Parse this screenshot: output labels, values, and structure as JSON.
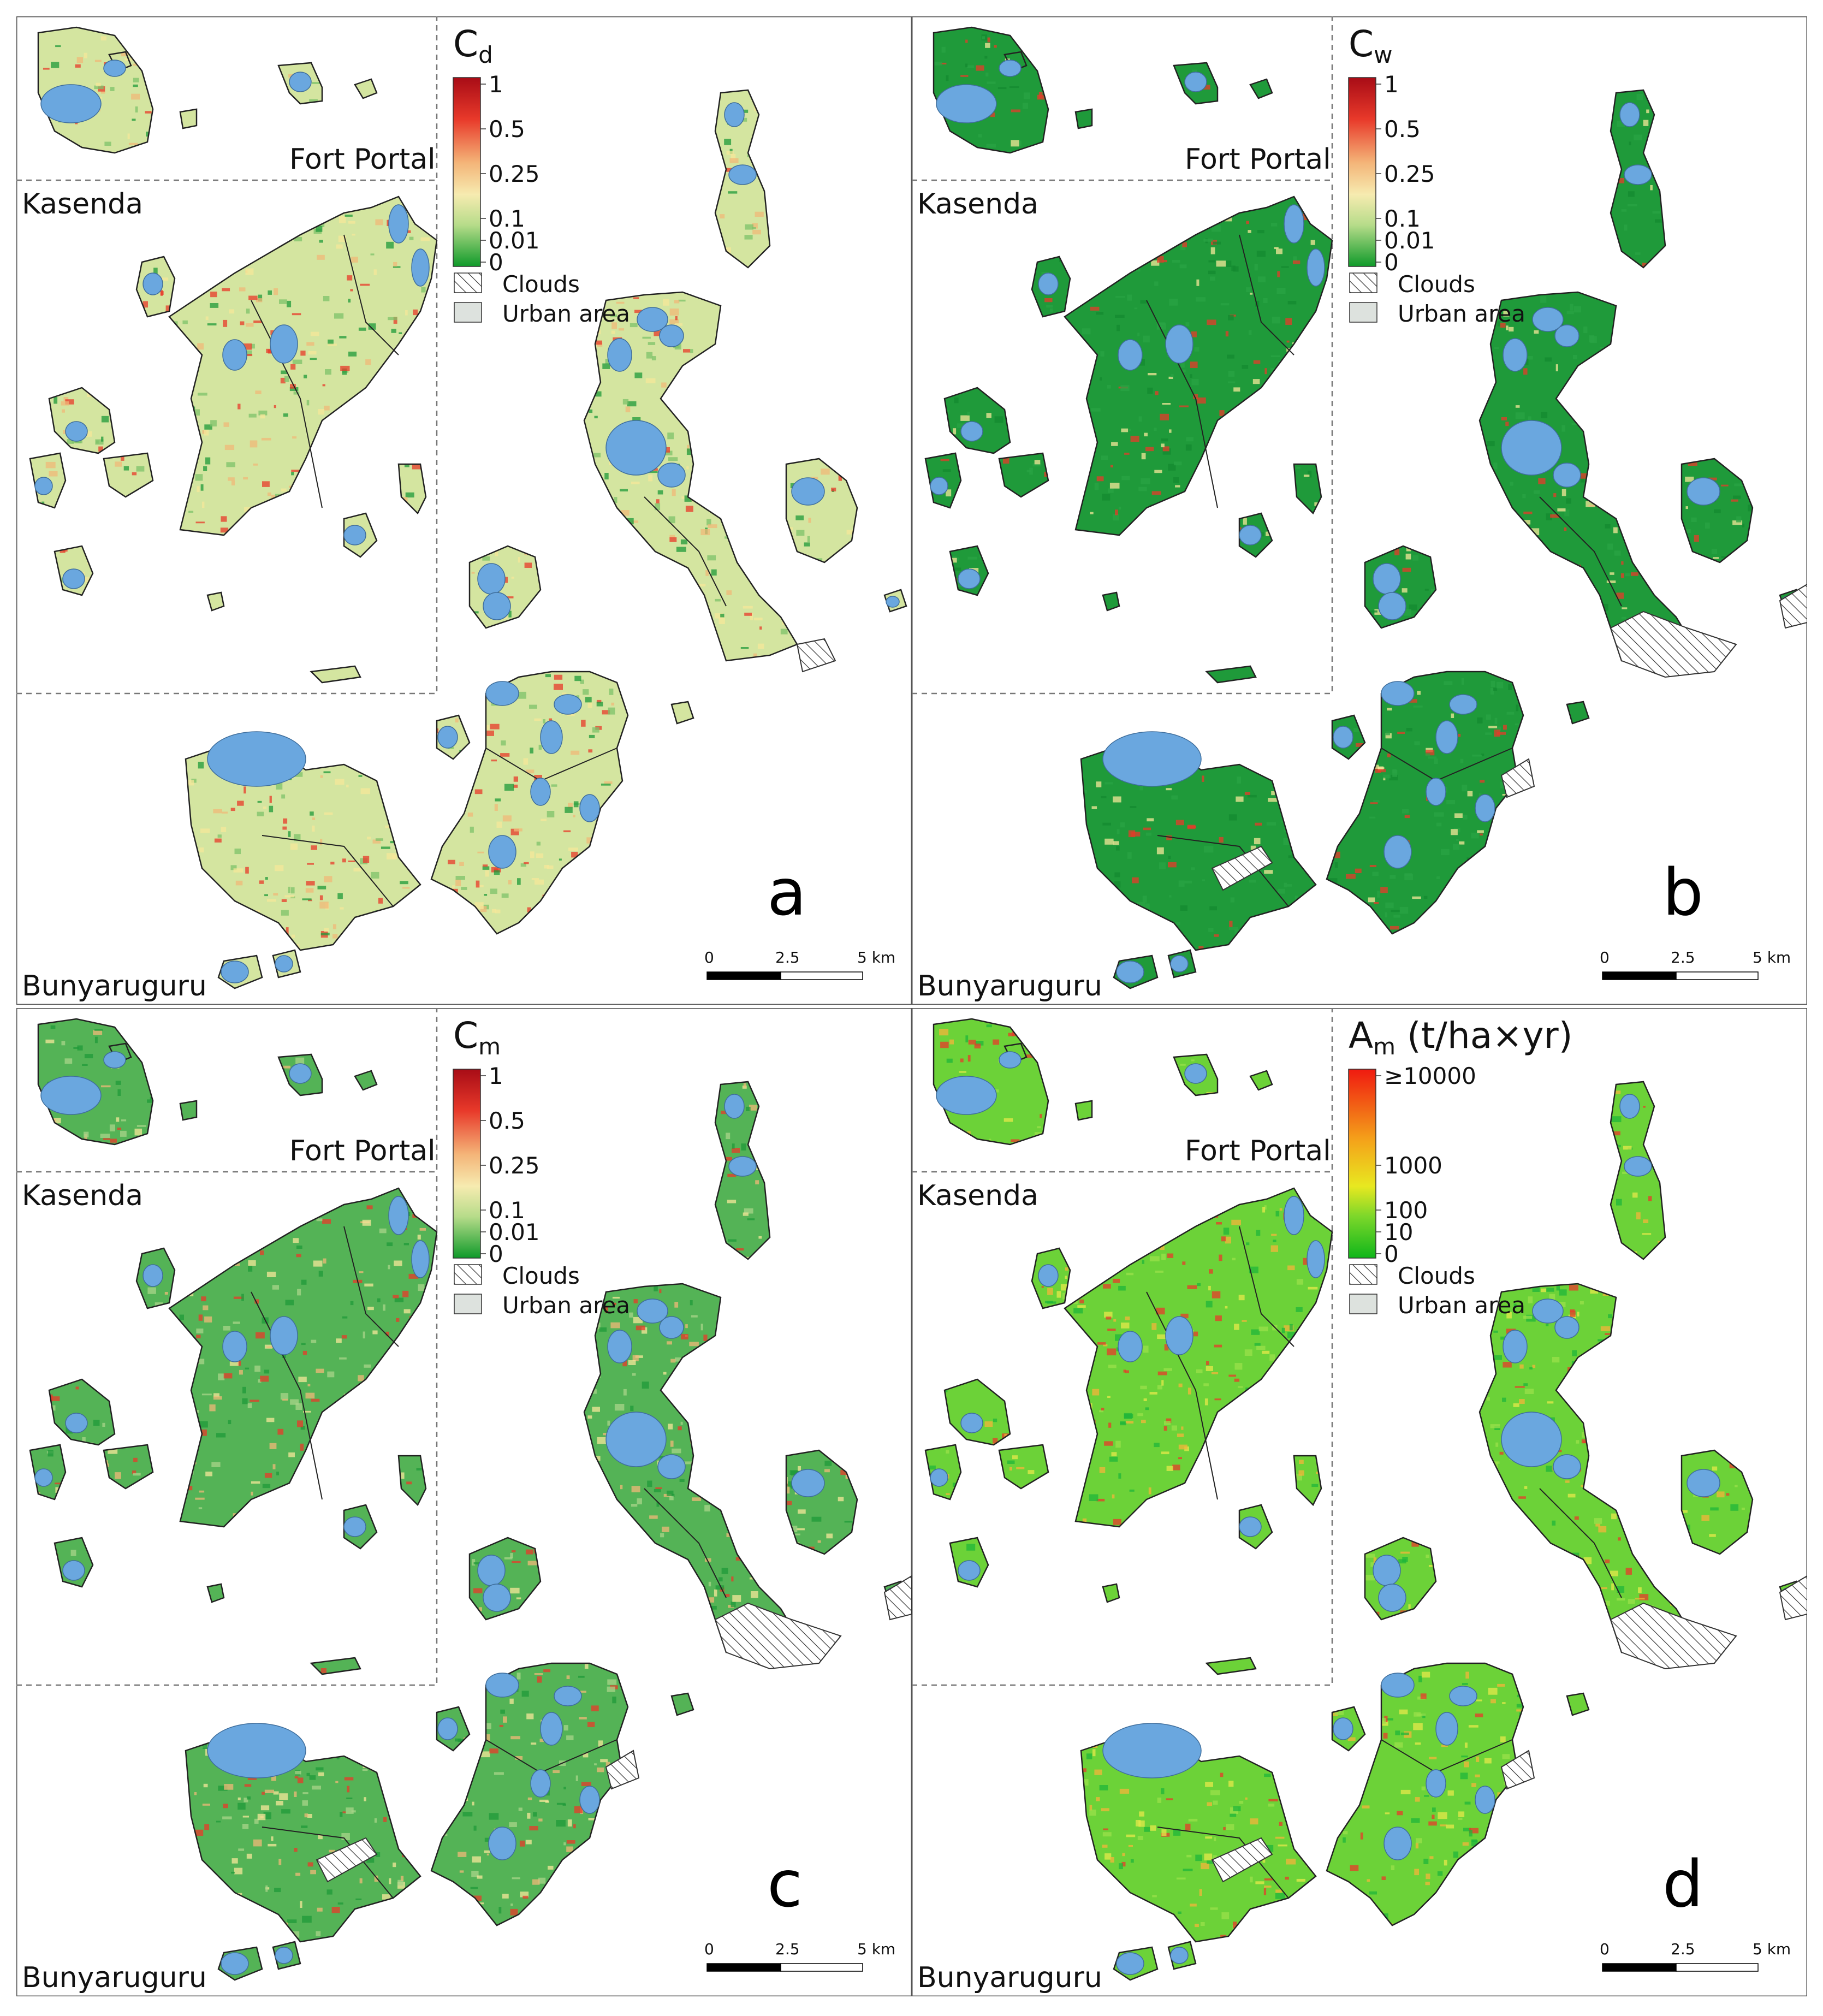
{
  "regions": {
    "fort_portal": "Fort Portal",
    "kasenda": "Kasenda",
    "bunyaruguru": "Bunyaruguru"
  },
  "legend_common": {
    "clouds": "Clouds",
    "urban": "Urban area"
  },
  "scale_bar": {
    "ticks": [
      "0",
      "2.5",
      "5 km"
    ]
  },
  "colors": {
    "lake": "#6aa7df",
    "low": "#1f9a3a",
    "mid": "#f5e79a",
    "high": "#e8392a",
    "max": "#b30d14",
    "urban": "#dde2de",
    "outline": "#222222"
  },
  "panels": [
    {
      "id": "a",
      "letter": "a",
      "title_main": "C",
      "title_sub": "d",
      "title_rest": "",
      "scale": "ratio",
      "ticks": [
        "1",
        "0.5",
        "0.25",
        "0.1",
        "0.01",
        "0"
      ]
    },
    {
      "id": "b",
      "letter": "b",
      "title_main": "C",
      "title_sub": "w",
      "title_rest": "",
      "scale": "ratio",
      "ticks": [
        "1",
        "0.5",
        "0.25",
        "0.1",
        "0.01",
        "0"
      ]
    },
    {
      "id": "c",
      "letter": "c",
      "title_main": "C",
      "title_sub": "m",
      "title_rest": "",
      "scale": "ratio",
      "ticks": [
        "1",
        "0.5",
        "0.25",
        "0.1",
        "0.01",
        "0"
      ]
    },
    {
      "id": "d",
      "letter": "d",
      "title_main": "A",
      "title_sub": "m",
      "title_rest": " (t/ha×yr)",
      "scale": "mass",
      "ticks": [
        "≥10000",
        "1000",
        "100",
        "10",
        "0"
      ]
    }
  ]
}
